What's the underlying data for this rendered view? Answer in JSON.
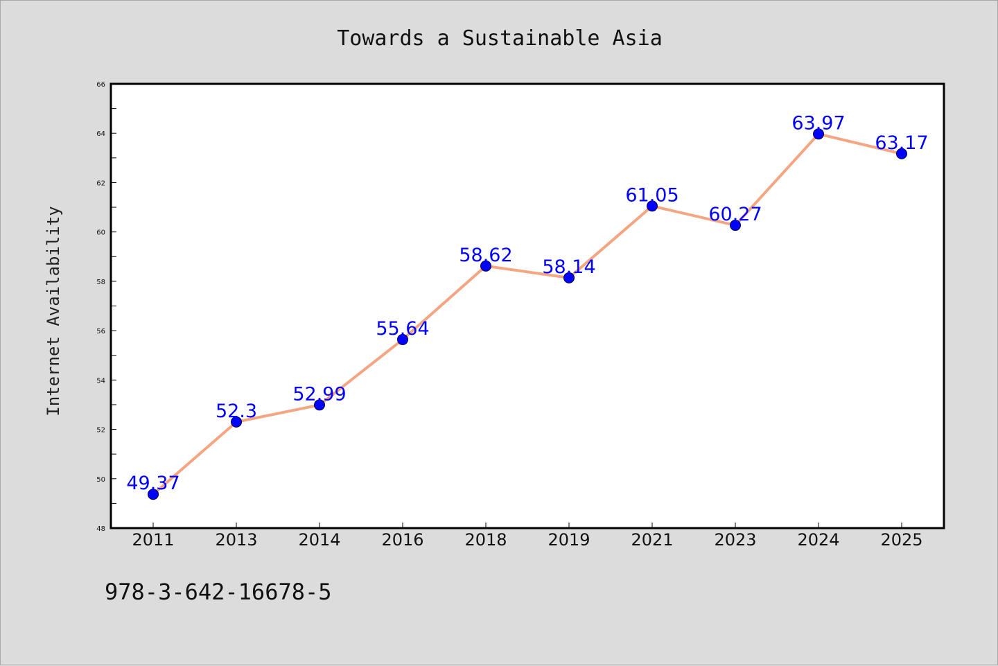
{
  "chart_data": {
    "type": "line",
    "title": "Towards a Sustainable Asia",
    "ylabel": "Internet Availability",
    "xlabel": "",
    "categories": [
      "2011",
      "2013",
      "2014",
      "2016",
      "2018",
      "2019",
      "2021",
      "2023",
      "2024",
      "2025"
    ],
    "series": [
      {
        "values": [
          49.37,
          52.3,
          52.99,
          55.64,
          58.62,
          58.14,
          61.05,
          60.27,
          63.97,
          63.17
        ],
        "line_color": "#f4a582",
        "marker_color": "#0000ff"
      }
    ],
    "data_labels": [
      "49.37",
      "52.3",
      "52.99",
      "55.64",
      "58.62",
      "58.14",
      "61.05",
      "60.27",
      "63.97",
      "63.17"
    ],
    "ylim": [
      48,
      66
    ],
    "yticks": [
      48,
      50,
      52,
      54,
      56,
      58,
      60,
      62,
      64,
      66
    ],
    "grid": false,
    "legend": "none"
  },
  "footer": {
    "isbn": "978-3-642-16678-5"
  }
}
